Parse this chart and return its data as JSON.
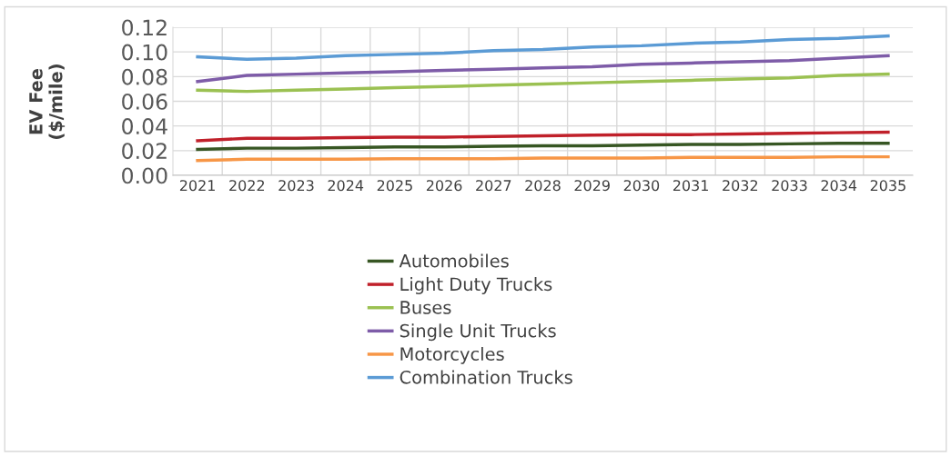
{
  "chart_data": {
    "type": "line",
    "ylabel": "EV Fee\n($/mile)",
    "categories": [
      "2021",
      "2022",
      "2023",
      "2024",
      "2025",
      "2026",
      "2027",
      "2028",
      "2029",
      "2030",
      "2031",
      "2032",
      "2033",
      "2034",
      "2035"
    ],
    "series": [
      {
        "name": "Automobiles",
        "color": "#375623",
        "values": [
          0.021,
          0.022,
          0.022,
          0.0225,
          0.023,
          0.023,
          0.0235,
          0.024,
          0.024,
          0.0245,
          0.025,
          0.025,
          0.0255,
          0.026,
          0.026
        ]
      },
      {
        "name": "Light Duty Trucks",
        "color": "#c0202a",
        "values": [
          0.028,
          0.03,
          0.03,
          0.0305,
          0.031,
          0.031,
          0.0315,
          0.032,
          0.0325,
          0.033,
          0.033,
          0.0335,
          0.034,
          0.0345,
          0.035
        ]
      },
      {
        "name": "Buses",
        "color": "#9bc152",
        "values": [
          0.069,
          0.068,
          0.069,
          0.07,
          0.071,
          0.072,
          0.073,
          0.074,
          0.075,
          0.076,
          0.077,
          0.078,
          0.079,
          0.081,
          0.082
        ]
      },
      {
        "name": "Single Unit Trucks",
        "color": "#7e5ca8",
        "values": [
          0.076,
          0.081,
          0.082,
          0.083,
          0.084,
          0.085,
          0.086,
          0.087,
          0.088,
          0.09,
          0.091,
          0.092,
          0.093,
          0.095,
          0.097
        ]
      },
      {
        "name": "Motorcycles",
        "color": "#f79646",
        "values": [
          0.012,
          0.013,
          0.013,
          0.013,
          0.0135,
          0.0135,
          0.0135,
          0.014,
          0.014,
          0.014,
          0.0145,
          0.0145,
          0.0145,
          0.015,
          0.015
        ]
      },
      {
        "name": "Combination Trucks",
        "color": "#5b9bd5",
        "values": [
          0.096,
          0.094,
          0.095,
          0.097,
          0.098,
          0.099,
          0.101,
          0.102,
          0.104,
          0.105,
          0.107,
          0.108,
          0.11,
          0.111,
          0.113
        ]
      }
    ],
    "ylim": [
      0,
      0.12
    ],
    "yticks": [
      {
        "value": 0,
        "label": "0.00"
      },
      {
        "value": 0.02,
        "label": "0.02"
      },
      {
        "value": 0.04,
        "label": "0.04"
      },
      {
        "value": 0.06,
        "label": "0.06"
      },
      {
        "value": 0.08,
        "label": "0.08"
      },
      {
        "value": 0.1,
        "label": "0.10"
      },
      {
        "value": 0.12,
        "label": "0.12"
      }
    ],
    "grid": true,
    "legend": "bottom",
    "marker": "none",
    "line_style": "solid"
  }
}
